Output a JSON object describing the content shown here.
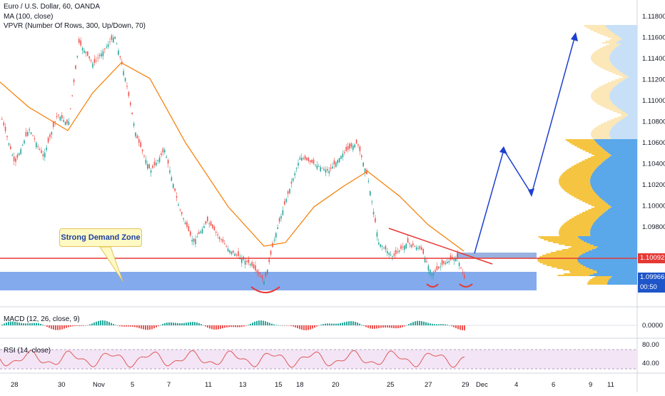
{
  "legend": {
    "symbol": "Euro / U.S. Dollar, 60, OANDA",
    "ma": "MA (100, close)",
    "vpvr": "VPVR (Number Of Rows, 300, Up/Down, 70)"
  },
  "annotation": "Strong Demand Zone",
  "price_axis": [
    "1.11800",
    "1.11600",
    "1.11400",
    "1.11200",
    "1.11000",
    "1.10800",
    "1.10600",
    "1.10400",
    "1.10200",
    "1.10000",
    "1.09800"
  ],
  "price_tags": {
    "last": "1.10092",
    "current": "1.09966",
    "countdown": "00:50"
  },
  "time_axis": [
    "28",
    "30",
    "Nov",
    "5",
    "7",
    "11",
    "13",
    "15",
    "18",
    "20",
    "25",
    "27",
    "29",
    "Dec",
    "4",
    "6",
    "9",
    "11"
  ],
  "macd": {
    "label": "MACD (12, 26, close, 9)",
    "axis": "0.0000"
  },
  "rsi": {
    "label": "RSI (14, close)",
    "axis": [
      "80.00",
      "40.00"
    ]
  },
  "colors": {
    "bull": "#26a69a",
    "bear": "#ef5350",
    "ma": "#f57c00",
    "zone": "#5b8de8",
    "resistance": "#e53935",
    "arrow": "#1e40d0",
    "vp_up": "#f5c542",
    "vp_down": "#5aa7ea",
    "rsi_band": "#f3e5f5"
  }
}
